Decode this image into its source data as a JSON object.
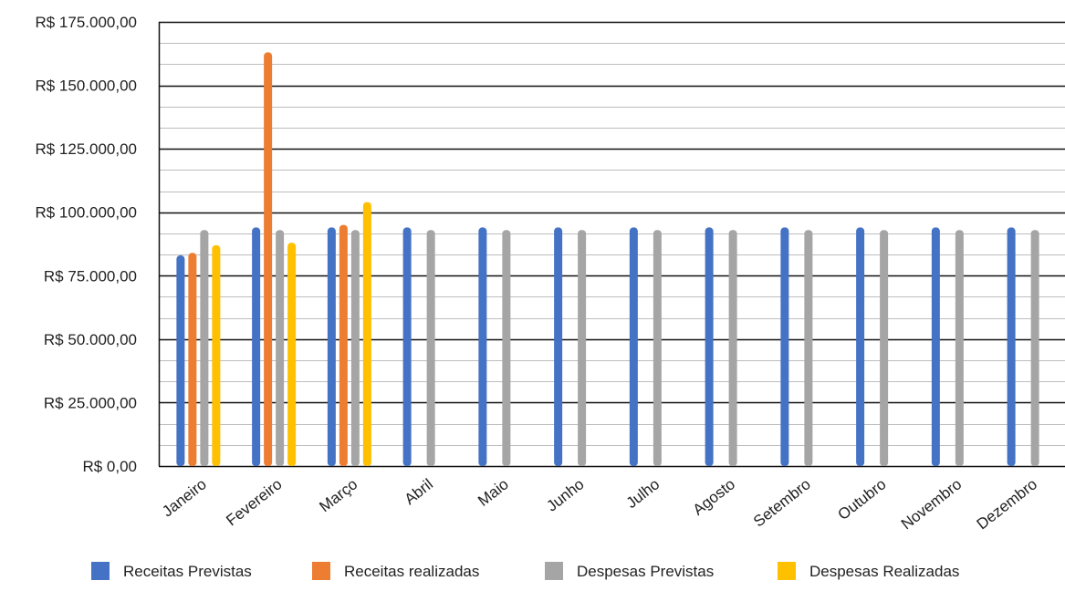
{
  "chart_data": {
    "type": "bar",
    "categories": [
      "Janeiro",
      "Fevereiro",
      "Março",
      "Abril",
      "Maio",
      "Junho",
      "Julho",
      "Agosto",
      "Setembro",
      "Outubro",
      "Novembro",
      "Dezembro"
    ],
    "series": [
      {
        "name": "Receitas Previstas",
        "color": "#4472c4",
        "values": [
          83000,
          94000,
          94000,
          94000,
          94000,
          94000,
          94000,
          94000,
          94000,
          94000,
          94000,
          94000
        ]
      },
      {
        "name": "Receitas realizadas",
        "color": "#ed7d31",
        "values": [
          84000,
          163000,
          95000,
          null,
          null,
          null,
          null,
          null,
          null,
          null,
          null,
          null
        ]
      },
      {
        "name": "Despesas Previstas",
        "color": "#a5a5a5",
        "values": [
          93000,
          93000,
          93000,
          93000,
          93000,
          93000,
          93000,
          93000,
          93000,
          93000,
          93000,
          93000
        ]
      },
      {
        "name": "Despesas Realizadas",
        "color": "#ffc000",
        "values": [
          87000,
          88000,
          104000,
          null,
          null,
          null,
          null,
          null,
          null,
          null,
          null,
          null
        ]
      }
    ],
    "ylim": [
      0,
      175000
    ],
    "yticks": [
      0,
      25000,
      50000,
      75000,
      100000,
      125000,
      150000,
      175000
    ],
    "ytick_labels": [
      "R$ 0,00",
      "R$ 25.000,00",
      "R$ 50.000,00",
      "R$ 75.000,00",
      "R$ 100.000,00",
      "R$ 125.000,00",
      "R$ 150.000,00",
      "R$ 175.000,00"
    ],
    "grid": true,
    "legend_position": "bottom"
  }
}
